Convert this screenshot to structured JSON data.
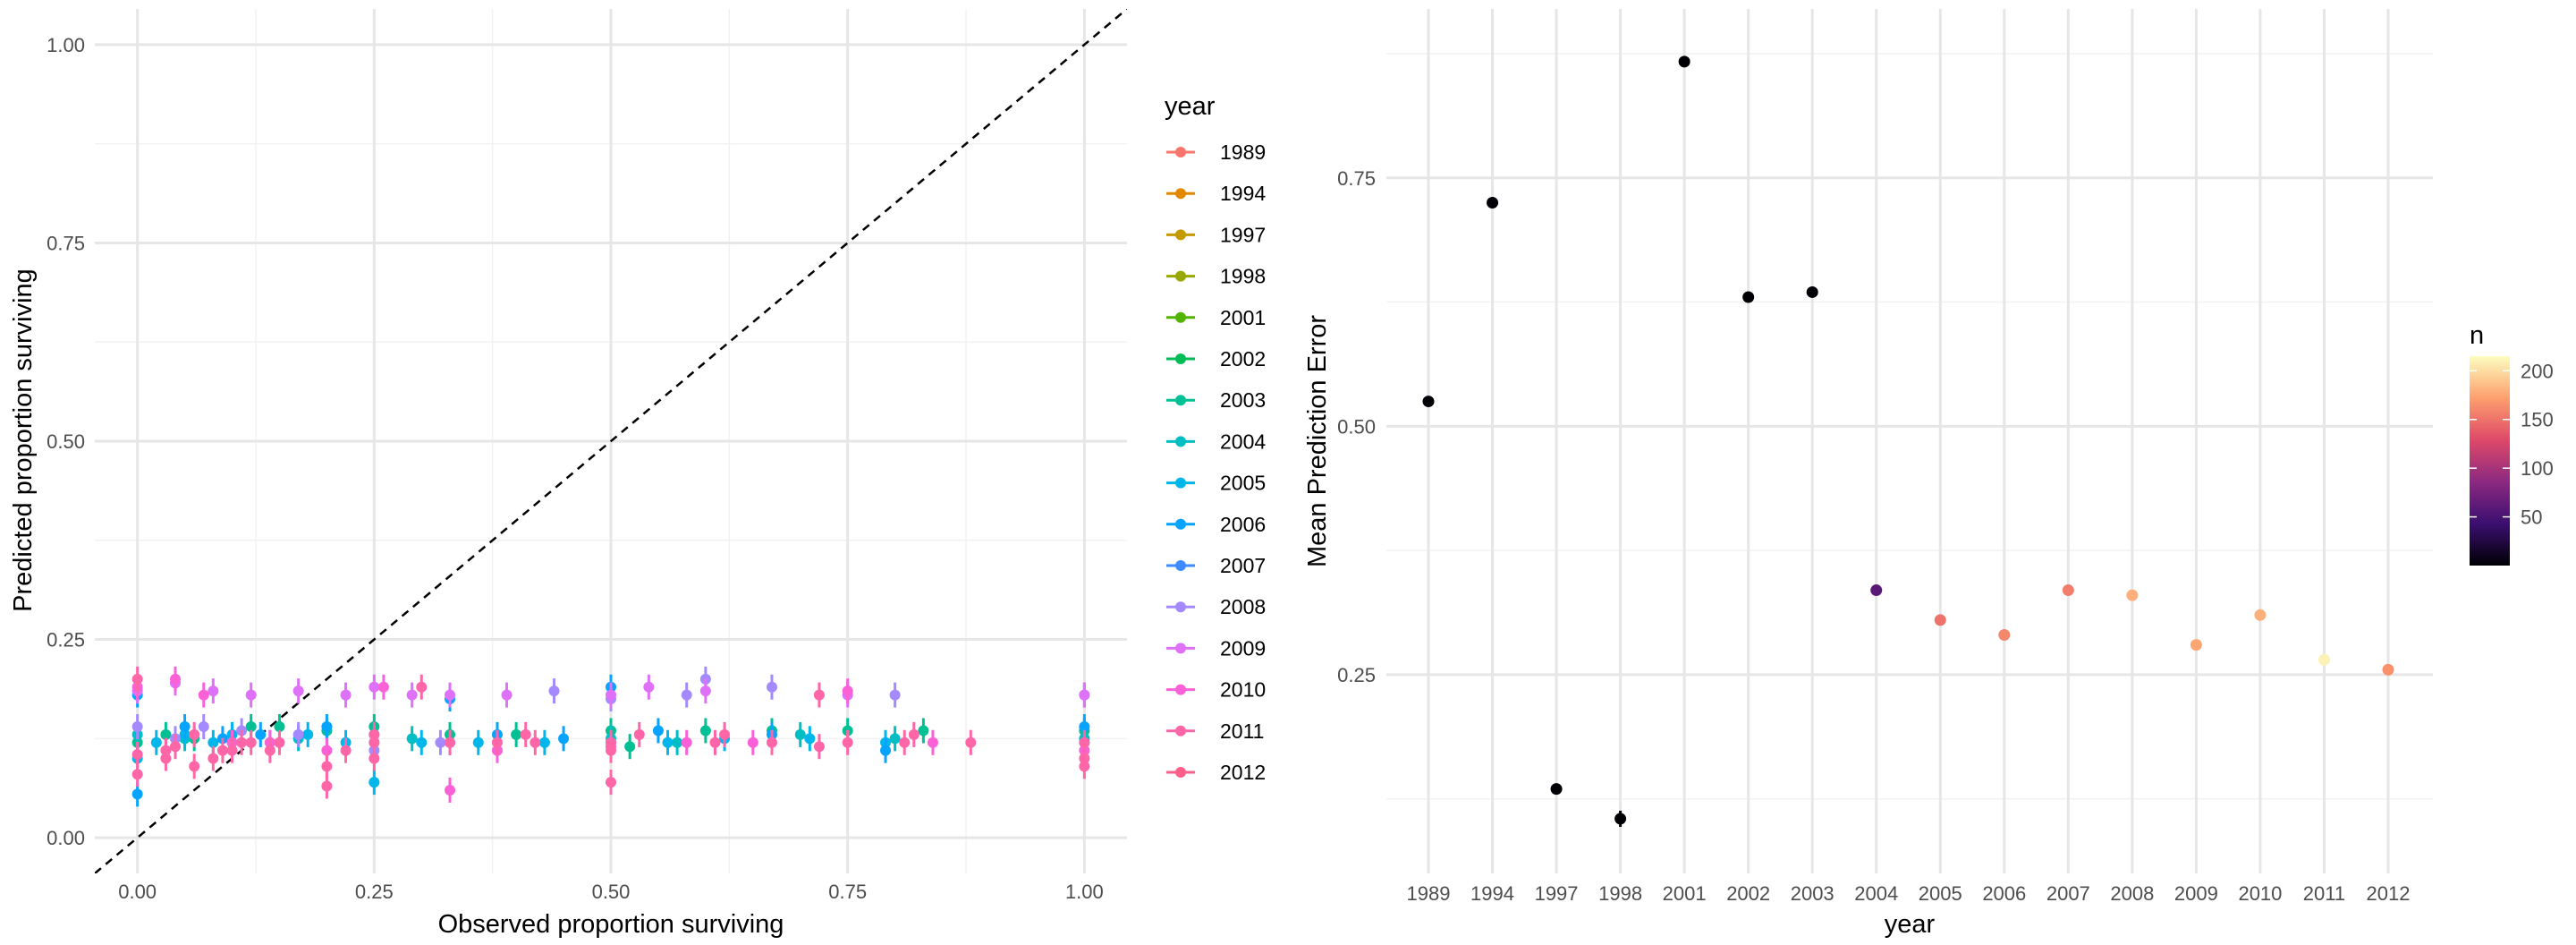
{
  "chart_data": [
    {
      "type": "scatter",
      "xlabel": "Observed proportion surviving",
      "ylabel": "Predicted proportion surviving",
      "xlim": [
        -0.045,
        1.045
      ],
      "ylim": [
        -0.045,
        1.045
      ],
      "x_ticks": [
        "0.00",
        "0.25",
        "0.50",
        "0.75",
        "1.00"
      ],
      "y_ticks": [
        "0.00",
        "0.25",
        "0.50",
        "0.75",
        "1.00"
      ],
      "reference_line": "y = x (dashed)",
      "grid": true,
      "legend": {
        "title": "year",
        "position": "right",
        "entries": [
          "1989",
          "1994",
          "1997",
          "1998",
          "2001",
          "2002",
          "2003",
          "2004",
          "2005",
          "2006",
          "2007",
          "2008",
          "2009",
          "2010",
          "2011",
          "2012"
        ]
      },
      "colors": {
        "1989": "#F8766D",
        "1994": "#E38900",
        "1997": "#C49A00",
        "1998": "#99A800",
        "2001": "#53B400",
        "2002": "#00BC56",
        "2003": "#00C094",
        "2004": "#00BFC4",
        "2005": "#00B6EB",
        "2006": "#06A4FF",
        "2007": "#A58AFF",
        "2008": "#DF70F8",
        "2009": "#FB61D7",
        "2010": "#FF66A8"
      },
      "series": [
        {
          "name": "2003",
          "points": [
            [
              0.0,
              0.12
            ],
            [
              0.03,
              0.13
            ],
            [
              0.06,
              0.125
            ],
            [
              0.12,
              0.14
            ],
            [
              0.15,
              0.14
            ],
            [
              0.2,
              0.135
            ],
            [
              0.25,
              0.14
            ],
            [
              0.33,
              0.13
            ],
            [
              0.4,
              0.13
            ],
            [
              0.5,
              0.135
            ],
            [
              0.52,
              0.115
            ],
            [
              0.6,
              0.135
            ],
            [
              0.67,
              0.135
            ],
            [
              0.75,
              0.135
            ],
            [
              0.83,
              0.135
            ],
            [
              1.0,
              0.135
            ]
          ]
        },
        {
          "name": "2004",
          "points": [
            [
              0.0,
              0.13
            ],
            [
              0.05,
              0.125
            ],
            [
              0.1,
              0.12
            ],
            [
              0.17,
              0.125
            ],
            [
              0.25,
              0.12
            ],
            [
              0.29,
              0.125
            ],
            [
              0.33,
              0.12
            ],
            [
              0.5,
              0.125
            ],
            [
              0.57,
              0.12
            ],
            [
              0.7,
              0.13
            ],
            [
              0.8,
              0.125
            ],
            [
              1.0,
              0.125
            ]
          ]
        },
        {
          "name": "2005",
          "points": [
            [
              0.0,
              0.1
            ],
            [
              0.02,
              0.12
            ],
            [
              0.05,
              0.13
            ],
            [
              0.08,
              0.12
            ],
            [
              0.1,
              0.13
            ],
            [
              0.14,
              0.12
            ],
            [
              0.18,
              0.13
            ],
            [
              0.22,
              0.12
            ],
            [
              0.25,
              0.07
            ],
            [
              0.3,
              0.12
            ],
            [
              0.36,
              0.12
            ],
            [
              0.43,
              0.12
            ],
            [
              0.5,
              0.12
            ],
            [
              0.56,
              0.12
            ],
            [
              0.62,
              0.125
            ],
            [
              0.71,
              0.125
            ],
            [
              0.79,
              0.12
            ],
            [
              1.0,
              0.12
            ]
          ]
        },
        {
          "name": "2006",
          "points": [
            [
              0.0,
              0.055
            ],
            [
              0.0,
              0.18
            ],
            [
              0.05,
              0.14
            ],
            [
              0.09,
              0.125
            ],
            [
              0.13,
              0.13
            ],
            [
              0.2,
              0.14
            ],
            [
              0.25,
              0.13
            ],
            [
              0.33,
              0.175
            ],
            [
              0.38,
              0.13
            ],
            [
              0.45,
              0.125
            ],
            [
              0.5,
              0.19
            ],
            [
              0.55,
              0.135
            ],
            [
              0.67,
              0.13
            ],
            [
              0.79,
              0.11
            ],
            [
              1.0,
              0.14
            ]
          ]
        },
        {
          "name": "2007",
          "points": [
            [
              0.0,
              0.14
            ],
            [
              0.04,
              0.125
            ],
            [
              0.07,
              0.14
            ],
            [
              0.11,
              0.135
            ],
            [
              0.17,
              0.13
            ],
            [
              0.25,
              0.11
            ],
            [
              0.32,
              0.12
            ],
            [
              0.44,
              0.185
            ],
            [
              0.5,
              0.175
            ],
            [
              0.58,
              0.18
            ],
            [
              0.6,
              0.2
            ],
            [
              0.67,
              0.19
            ],
            [
              0.8,
              0.18
            ],
            [
              1.0,
              0.18
            ]
          ]
        },
        {
          "name": "2008",
          "points": [
            [
              0.0,
              0.185
            ],
            [
              0.04,
              0.195
            ],
            [
              0.08,
              0.185
            ],
            [
              0.12,
              0.18
            ],
            [
              0.17,
              0.185
            ],
            [
              0.22,
              0.18
            ],
            [
              0.25,
              0.19
            ],
            [
              0.29,
              0.18
            ],
            [
              0.33,
              0.18
            ],
            [
              0.39,
              0.18
            ],
            [
              0.5,
              0.18
            ],
            [
              0.54,
              0.19
            ],
            [
              0.6,
              0.185
            ],
            [
              0.75,
              0.18
            ],
            [
              1.0,
              0.18
            ]
          ]
        },
        {
          "name": "2009",
          "points": [
            [
              0.0,
              0.19
            ],
            [
              0.04,
              0.2
            ],
            [
              0.07,
              0.18
            ],
            [
              0.1,
              0.12
            ],
            [
              0.14,
              0.12
            ],
            [
              0.2,
              0.11
            ],
            [
              0.26,
              0.19
            ],
            [
              0.33,
              0.06
            ],
            [
              0.38,
              0.11
            ],
            [
              0.5,
              0.115
            ],
            [
              0.58,
              0.12
            ],
            [
              0.65,
              0.12
            ],
            [
              0.75,
              0.185
            ],
            [
              0.84,
              0.12
            ],
            [
              1.0,
              0.11
            ]
          ]
        },
        {
          "name": "2010",
          "points": [
            [
              0.0,
              0.08
            ],
            [
              0.04,
              0.115
            ],
            [
              0.08,
              0.1
            ],
            [
              0.11,
              0.12
            ],
            [
              0.14,
              0.11
            ],
            [
              0.2,
              0.065
            ],
            [
              0.25,
              0.13
            ],
            [
              0.3,
              0.19
            ],
            [
              0.38,
              0.12
            ],
            [
              0.5,
              0.07
            ],
            [
              0.53,
              0.13
            ],
            [
              0.67,
              0.12
            ],
            [
              0.72,
              0.115
            ],
            [
              0.82,
              0.13
            ],
            [
              1.0,
              0.09
            ]
          ]
        },
        {
          "name": "2011",
          "points": [
            [
              0.0,
              0.2
            ],
            [
              0.03,
              0.11
            ],
            [
              0.06,
              0.13
            ],
            [
              0.09,
              0.11
            ],
            [
              0.12,
              0.12
            ],
            [
              0.2,
              0.09
            ],
            [
              0.25,
              0.1
            ],
            [
              0.33,
              0.12
            ],
            [
              0.42,
              0.12
            ],
            [
              0.5,
              0.11
            ],
            [
              0.62,
              0.13
            ],
            [
              0.75,
              0.12
            ],
            [
              0.88,
              0.12
            ],
            [
              1.0,
              0.1
            ]
          ]
        },
        {
          "name": "2012",
          "points": [
            [
              0.0,
              0.105
            ],
            [
              0.03,
              0.1
            ],
            [
              0.06,
              0.09
            ],
            [
              0.1,
              0.11
            ],
            [
              0.15,
              0.12
            ],
            [
              0.22,
              0.11
            ],
            [
              0.25,
              0.12
            ],
            [
              0.33,
              0.12
            ],
            [
              0.41,
              0.13
            ],
            [
              0.5,
              0.12
            ],
            [
              0.61,
              0.12
            ],
            [
              0.72,
              0.18
            ],
            [
              0.81,
              0.12
            ],
            [
              1.0,
              0.12
            ]
          ]
        }
      ]
    },
    {
      "type": "scatter",
      "xlabel": "year",
      "ylabel": "Mean Prediction Error",
      "categories": [
        "1989",
        "1994",
        "1997",
        "1998",
        "2001",
        "2002",
        "2003",
        "2004",
        "2005",
        "2006",
        "2007",
        "2008",
        "2009",
        "2010",
        "2011",
        "2012"
      ],
      "values": [
        0.525,
        0.725,
        0.135,
        0.105,
        0.867,
        0.63,
        0.635,
        0.335,
        0.305,
        0.29,
        0.335,
        0.33,
        0.28,
        0.31,
        0.265,
        0.255
      ],
      "n": [
        0,
        0,
        0,
        0,
        0,
        0,
        0,
        60,
        150,
        160,
        155,
        180,
        175,
        180,
        210,
        165
      ],
      "ylim": [
        0.05,
        0.92
      ],
      "y_ticks": [
        "0.25",
        "0.50",
        "0.75"
      ],
      "grid": true,
      "colorbar": {
        "title": "n",
        "position": "right",
        "ticks": [
          "50",
          "100",
          "150",
          "200"
        ],
        "range": [
          0,
          215
        ],
        "palette": [
          "#000004",
          "#3B0F70",
          "#8C2981",
          "#DE4968",
          "#FE9F6D",
          "#FCFDBF"
        ]
      }
    }
  ]
}
